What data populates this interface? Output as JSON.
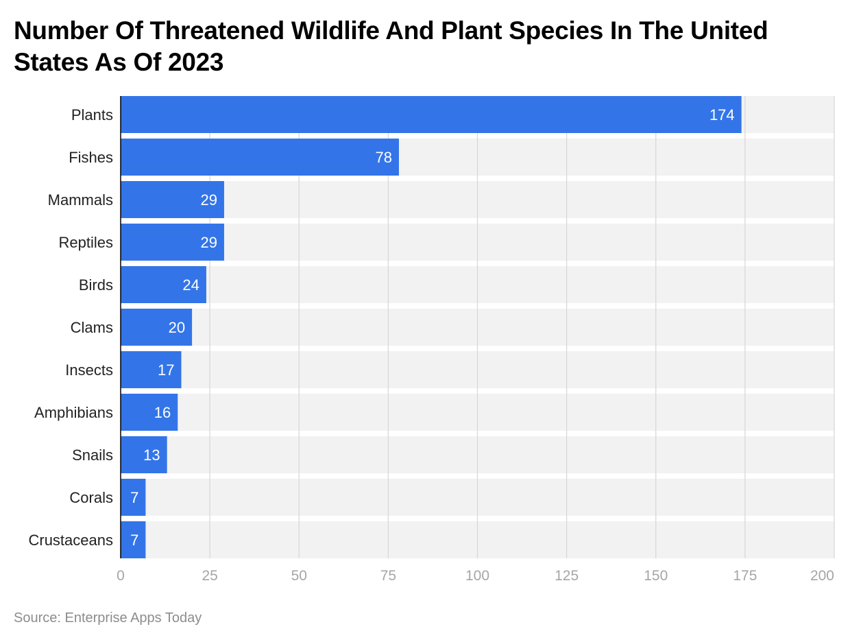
{
  "chart_data": {
    "type": "bar",
    "orientation": "horizontal",
    "title": "Number Of Threatened Wildlife And Plant Species In The United States As Of 2023",
    "categories": [
      "Plants",
      "Fishes",
      "Mammals",
      "Reptiles",
      "Birds",
      "Clams",
      "Insects",
      "Amphibians",
      "Snails",
      "Corals",
      "Crustaceans"
    ],
    "values": [
      174,
      78,
      29,
      29,
      24,
      20,
      17,
      16,
      13,
      7,
      7
    ],
    "xlim": [
      0,
      200
    ],
    "xticks": [
      0,
      25,
      50,
      75,
      100,
      125,
      150,
      175,
      200
    ],
    "xlabel": "",
    "ylabel": "",
    "grid": true,
    "legend": "none"
  },
  "source": "Source: Enterprise Apps Today",
  "colors": {
    "bar": "#3375e8",
    "row_background": "#f2f2f2",
    "grid": "#d6d6d6",
    "axis": "#000000",
    "tick_label": "#a6a6a6",
    "category_label": "#222222",
    "value_label": "#ffffff"
  }
}
